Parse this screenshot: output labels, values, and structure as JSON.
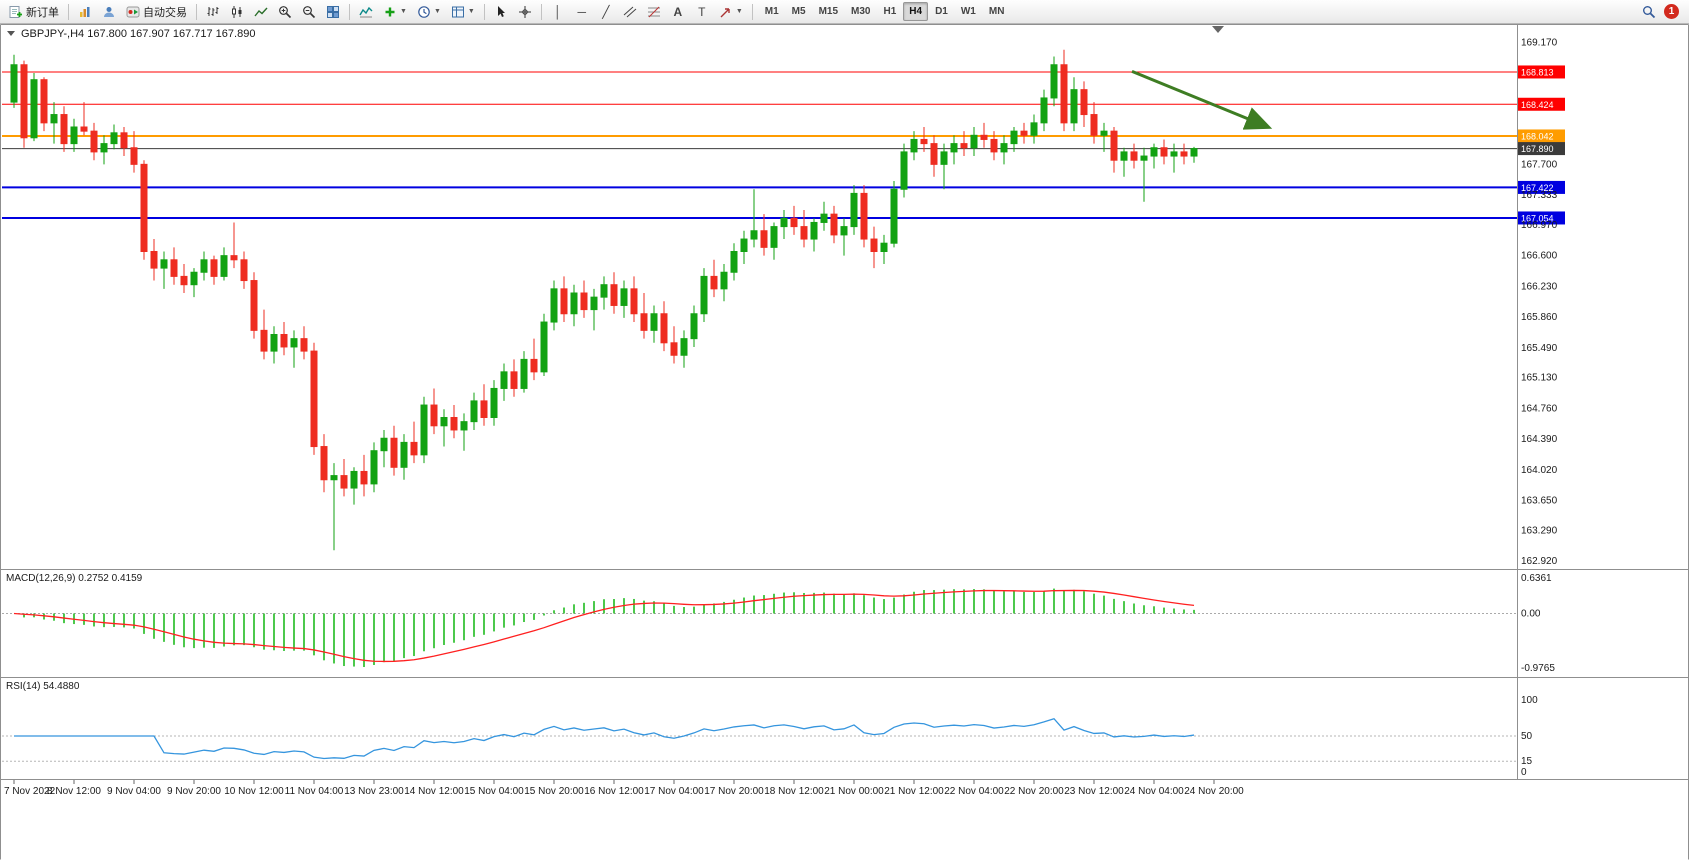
{
  "toolbar": {
    "new_order": "新订单",
    "autotrade": "自动交易",
    "timeframes": [
      "M1",
      "M5",
      "M15",
      "M30",
      "H1",
      "H4",
      "D1",
      "W1",
      "MN"
    ],
    "active_timeframe": "H4",
    "notification_badge": "1"
  },
  "chart": {
    "title": "GBPJPY-,H4  167.800 167.907 167.717 167.890",
    "symbol": "GBPJPY-",
    "timeframe": "H4",
    "macd_title": "MACD(12,26,9) 0.2752 0.4159",
    "rsi_title": "RSI(14) 54.4880"
  },
  "chart_data": {
    "type": "candlestick",
    "symbol": "GBPJPY-",
    "timeframe": "H4",
    "ohlc_display": {
      "open": "167.800",
      "high": "167.907",
      "low": "167.717",
      "close": "167.890"
    },
    "up_color": "#12a212",
    "down_color": "#ee2c20",
    "price_axis_labels": [
      169.17,
      167.7,
      167.333,
      166.97,
      166.6,
      166.23,
      165.86,
      165.49,
      165.13,
      164.76,
      164.39,
      164.02,
      163.65,
      163.29,
      162.92
    ],
    "hlines": [
      {
        "price": 168.813,
        "color": "#ff0000",
        "label": "168.813",
        "width": 1
      },
      {
        "price": 168.424,
        "color": "#ff0000",
        "label": "168.424",
        "width": 1
      },
      {
        "price": 168.042,
        "color": "#ff9c00",
        "label": "168.042",
        "width": 2
      },
      {
        "price": 167.89,
        "color": "#3b3b3b",
        "label": "167.890",
        "width": 1
      },
      {
        "price": 167.422,
        "color": "#0000e0",
        "label": "167.422",
        "width": 2
      },
      {
        "price": 167.054,
        "color": "#0000e0",
        "label": "167.054",
        "width": 2
      }
    ],
    "time_axis_labels": [
      "7 Nov 2022",
      "8 Nov 12:00",
      "9 Nov 04:00",
      "9 Nov 20:00",
      "10 Nov 12:00",
      "11 Nov 04:00",
      "13 Nov 23:00",
      "14 Nov 12:00",
      "15 Nov 04:00",
      "15 Nov 20:00",
      "16 Nov 12:00",
      "17 Nov 04:00",
      "17 Nov 20:00",
      "18 Nov 12:00",
      "21 Nov 00:00",
      "21 Nov 12:00",
      "22 Nov 04:00",
      "22 Nov 20:00",
      "23 Nov 12:00",
      "24 Nov 04:00",
      "24 Nov 20:00"
    ],
    "macd": {
      "label": "MACD(12,26,9)",
      "value_main": "0.2752",
      "value_signal": "0.4159",
      "axis_values": [
        0.6361,
        0,
        -0.9765
      ],
      "histogram_color": "#00b200",
      "signal_color": "#ff2020",
      "params": [
        12,
        26,
        9
      ]
    },
    "rsi": {
      "label": "RSI(14)",
      "value": "54.4880",
      "axis_values": [
        100,
        50,
        15,
        0
      ],
      "levels": [
        50,
        15
      ],
      "line_color": "#3595de",
      "period": 14
    },
    "arrow": {
      "bar1": 111.8,
      "price1": 168.82,
      "bar2": 125.4,
      "price2": 168.15,
      "color": "#3e7d23"
    },
    "candles": [
      [
        168.45,
        169.02,
        168.38,
        168.9
      ],
      [
        168.9,
        168.95,
        167.9,
        168.02
      ],
      [
        168.02,
        168.8,
        167.98,
        168.72
      ],
      [
        168.72,
        168.75,
        168.1,
        168.2
      ],
      [
        168.2,
        168.45,
        167.95,
        168.3
      ],
      [
        168.3,
        168.4,
        167.85,
        167.95
      ],
      [
        167.95,
        168.25,
        167.85,
        168.15
      ],
      [
        168.15,
        168.45,
        168.05,
        168.1
      ],
      [
        168.1,
        168.2,
        167.75,
        167.85
      ],
      [
        167.85,
        168.05,
        167.7,
        167.95
      ],
      [
        167.95,
        168.18,
        167.88,
        168.08
      ],
      [
        168.08,
        168.15,
        167.8,
        167.9
      ],
      [
        167.9,
        168.1,
        167.6,
        167.7
      ],
      [
        167.7,
        167.75,
        166.55,
        166.65
      ],
      [
        166.65,
        166.8,
        166.3,
        166.45
      ],
      [
        166.45,
        166.65,
        166.2,
        166.55
      ],
      [
        166.55,
        166.7,
        166.25,
        166.35
      ],
      [
        166.35,
        166.5,
        166.15,
        166.25
      ],
      [
        166.25,
        166.45,
        166.1,
        166.4
      ],
      [
        166.4,
        166.65,
        166.3,
        166.55
      ],
      [
        166.55,
        166.6,
        166.25,
        166.35
      ],
      [
        166.35,
        166.7,
        166.3,
        166.6
      ],
      [
        166.6,
        167.0,
        166.45,
        166.55
      ],
      [
        166.55,
        166.65,
        166.2,
        166.3
      ],
      [
        166.3,
        166.4,
        165.6,
        165.7
      ],
      [
        165.7,
        165.95,
        165.35,
        165.45
      ],
      [
        165.45,
        165.75,
        165.3,
        165.65
      ],
      [
        165.65,
        165.8,
        165.4,
        165.5
      ],
      [
        165.5,
        165.7,
        165.25,
        165.6
      ],
      [
        165.6,
        165.75,
        165.35,
        165.45
      ],
      [
        165.45,
        165.55,
        164.2,
        164.3
      ],
      [
        164.3,
        164.45,
        163.75,
        163.9
      ],
      [
        163.9,
        164.1,
        163.05,
        163.95
      ],
      [
        163.95,
        164.15,
        163.7,
        163.8
      ],
      [
        163.8,
        164.05,
        163.6,
        164.0
      ],
      [
        164.0,
        164.2,
        163.7,
        163.85
      ],
      [
        163.85,
        164.35,
        163.75,
        164.25
      ],
      [
        164.25,
        164.5,
        164.05,
        164.4
      ],
      [
        164.4,
        164.55,
        163.95,
        164.05
      ],
      [
        164.05,
        164.45,
        163.9,
        164.35
      ],
      [
        164.35,
        164.6,
        164.1,
        164.2
      ],
      [
        164.2,
        164.9,
        164.1,
        164.8
      ],
      [
        164.8,
        165.0,
        164.45,
        164.55
      ],
      [
        164.55,
        164.75,
        164.3,
        164.65
      ],
      [
        164.65,
        164.8,
        164.4,
        164.5
      ],
      [
        164.5,
        164.7,
        164.25,
        164.6
      ],
      [
        164.6,
        164.95,
        164.5,
        164.85
      ],
      [
        164.85,
        165.05,
        164.55,
        164.65
      ],
      [
        164.65,
        165.1,
        164.55,
        165.0
      ],
      [
        165.0,
        165.3,
        164.85,
        165.2
      ],
      [
        165.2,
        165.35,
        164.9,
        165.0
      ],
      [
        165.0,
        165.45,
        164.95,
        165.35
      ],
      [
        165.35,
        165.6,
        165.1,
        165.2
      ],
      [
        165.2,
        165.9,
        165.15,
        165.8
      ],
      [
        165.8,
        166.3,
        165.7,
        166.2
      ],
      [
        166.2,
        166.35,
        165.8,
        165.9
      ],
      [
        165.9,
        166.25,
        165.75,
        166.15
      ],
      [
        166.15,
        166.3,
        165.85,
        165.95
      ],
      [
        165.95,
        166.2,
        165.7,
        166.1
      ],
      [
        166.1,
        166.35,
        165.95,
        166.25
      ],
      [
        166.25,
        166.4,
        165.9,
        166.0
      ],
      [
        166.0,
        166.3,
        165.85,
        166.2
      ],
      [
        166.2,
        166.35,
        165.8,
        165.9
      ],
      [
        165.9,
        166.15,
        165.6,
        165.7
      ],
      [
        165.7,
        166.0,
        165.55,
        165.9
      ],
      [
        165.9,
        166.05,
        165.45,
        165.55
      ],
      [
        165.55,
        165.75,
        165.3,
        165.4
      ],
      [
        165.4,
        165.7,
        165.25,
        165.6
      ],
      [
        165.6,
        166.0,
        165.5,
        165.9
      ],
      [
        165.9,
        166.45,
        165.8,
        166.35
      ],
      [
        166.35,
        166.55,
        166.1,
        166.2
      ],
      [
        166.2,
        166.5,
        166.05,
        166.4
      ],
      [
        166.4,
        166.75,
        166.3,
        166.65
      ],
      [
        166.65,
        166.9,
        166.5,
        166.8
      ],
      [
        166.8,
        167.4,
        166.7,
        166.9
      ],
      [
        166.9,
        167.1,
        166.6,
        166.7
      ],
      [
        166.7,
        167.0,
        166.55,
        166.95
      ],
      [
        166.95,
        167.15,
        166.8,
        167.05
      ],
      [
        167.05,
        167.2,
        166.85,
        166.95
      ],
      [
        166.95,
        167.15,
        166.7,
        166.8
      ],
      [
        166.8,
        167.05,
        166.65,
        167.0
      ],
      [
        167.0,
        167.25,
        166.9,
        167.1
      ],
      [
        167.1,
        167.2,
        166.75,
        166.85
      ],
      [
        166.85,
        167.05,
        166.6,
        166.95
      ],
      [
        166.95,
        167.45,
        166.85,
        167.35
      ],
      [
        167.35,
        167.45,
        166.7,
        166.8
      ],
      [
        166.8,
        166.95,
        166.45,
        166.65
      ],
      [
        166.65,
        166.85,
        166.5,
        166.75
      ],
      [
        166.75,
        167.5,
        166.7,
        167.4
      ],
      [
        167.4,
        167.95,
        167.3,
        167.85
      ],
      [
        167.85,
        168.1,
        167.75,
        168.0
      ],
      [
        168.0,
        168.15,
        167.85,
        167.95
      ],
      [
        167.95,
        168.05,
        167.55,
        167.7
      ],
      [
        167.7,
        167.95,
        167.4,
        167.85
      ],
      [
        167.85,
        168.05,
        167.7,
        167.95
      ],
      [
        167.95,
        168.1,
        167.8,
        167.9
      ],
      [
        167.9,
        168.15,
        167.8,
        168.05
      ],
      [
        168.05,
        168.2,
        167.9,
        168.0
      ],
      [
        168.0,
        168.1,
        167.75,
        167.85
      ],
      [
        167.85,
        168.05,
        167.7,
        167.95
      ],
      [
        167.95,
        168.15,
        167.85,
        168.1
      ],
      [
        168.1,
        168.2,
        167.95,
        168.05
      ],
      [
        168.05,
        168.3,
        167.95,
        168.2
      ],
      [
        168.2,
        168.6,
        168.1,
        168.5
      ],
      [
        168.5,
        169.0,
        168.4,
        168.9
      ],
      [
        168.9,
        169.08,
        168.1,
        168.2
      ],
      [
        168.2,
        168.75,
        168.1,
        168.6
      ],
      [
        168.6,
        168.7,
        168.15,
        168.3
      ],
      [
        168.3,
        168.45,
        167.95,
        168.05
      ],
      [
        168.05,
        168.2,
        167.85,
        168.1
      ],
      [
        168.1,
        168.15,
        167.6,
        167.75
      ],
      [
        167.75,
        167.9,
        167.55,
        167.85
      ],
      [
        167.85,
        167.95,
        167.65,
        167.75
      ],
      [
        167.75,
        167.9,
        167.25,
        167.8
      ],
      [
        167.8,
        167.95,
        167.65,
        167.9
      ],
      [
        167.9,
        168.0,
        167.7,
        167.8
      ],
      [
        167.8,
        167.95,
        167.6,
        167.85
      ],
      [
        167.85,
        167.95,
        167.7,
        167.8
      ],
      [
        167.8,
        167.91,
        167.72,
        167.89
      ]
    ]
  }
}
